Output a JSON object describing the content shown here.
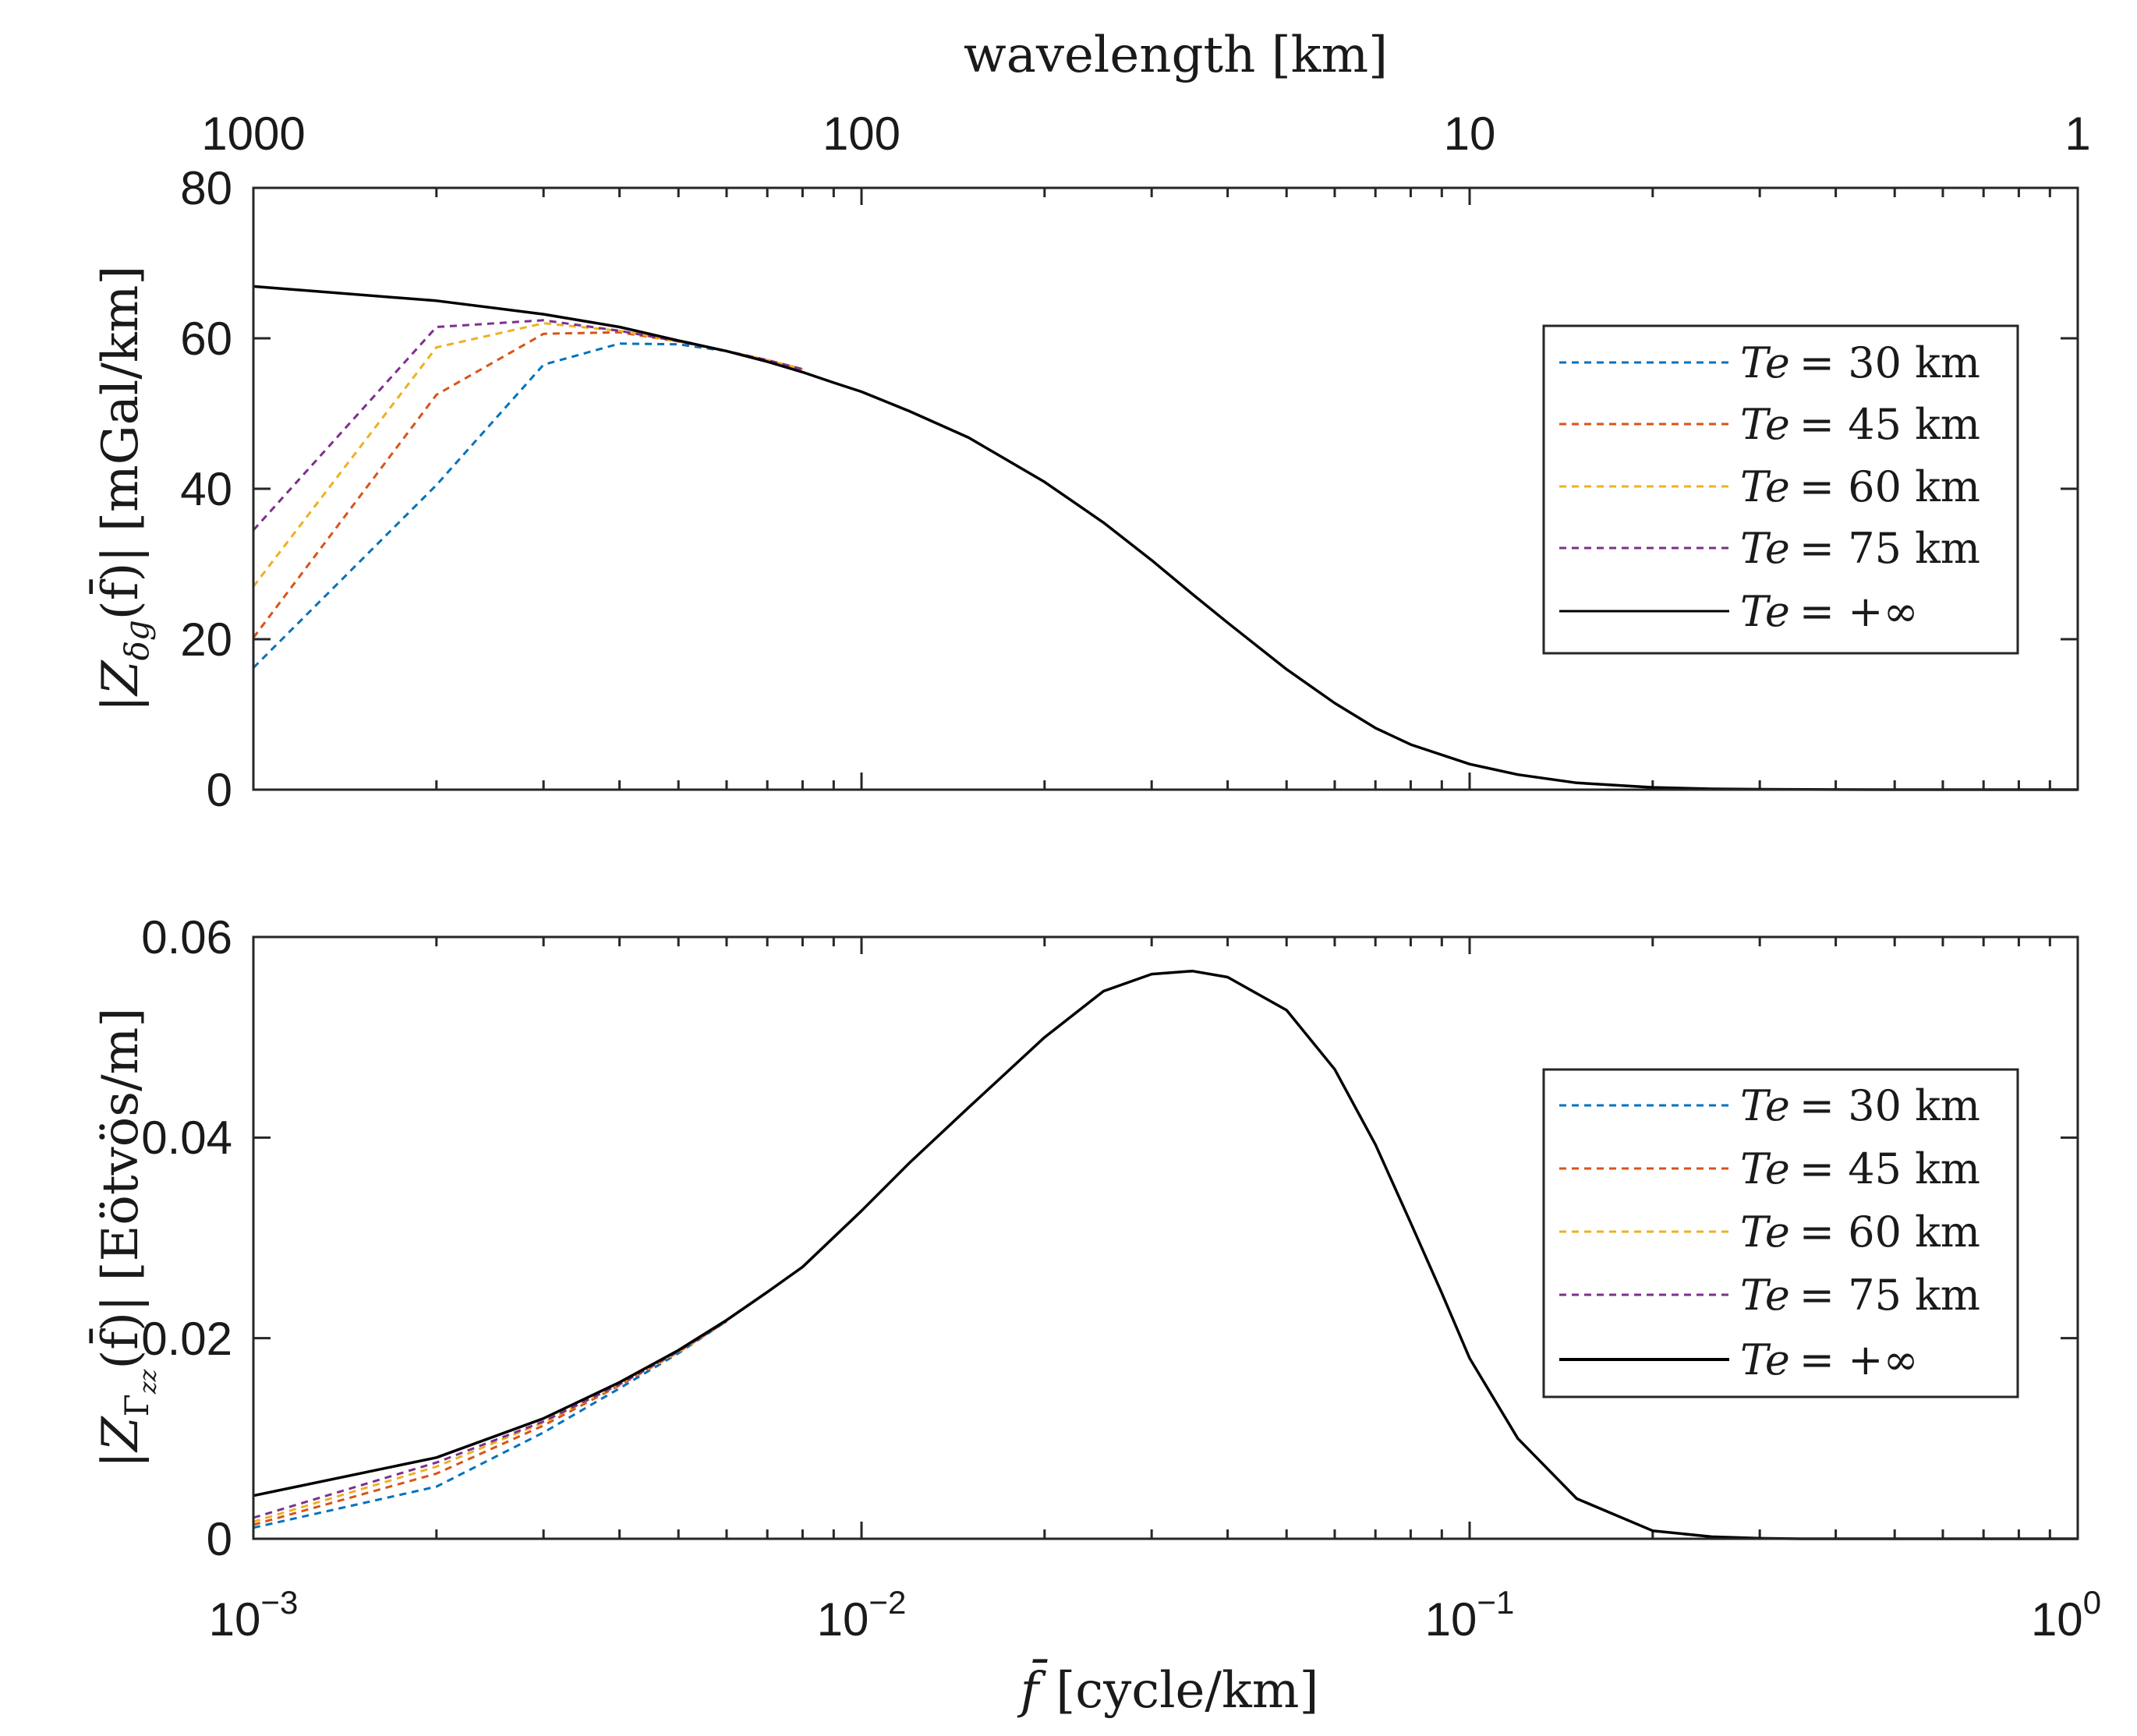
{
  "chart_data": [
    {
      "type": "line",
      "panel": "top",
      "xscale": "log",
      "xlim": [
        0.001,
        1
      ],
      "ylim": [
        0,
        80
      ],
      "yticks": [
        "0",
        "20",
        "40",
        "60",
        "80"
      ],
      "top_axis": {
        "label": "wavelength [km]",
        "ticks": [
          "1000",
          "100",
          "10",
          "1"
        ]
      },
      "ylabel": "|Z_δg(f̄)| [mGal/km]",
      "ylabel_parts": {
        "bar1": "|",
        "z": "Z",
        "sub": "δg",
        "arg": "(f̄)",
        "bar2": "|",
        "unit": "[mGal/km]"
      },
      "legend": {
        "position": "right"
      },
      "series": [
        {
          "name": "Te = 30 km",
          "label_var": "Te",
          "label_val": "= 30 km",
          "color": "#0072BD",
          "dash": true,
          "x": [
            0.001,
            0.002,
            0.003,
            0.004,
            0.005,
            0.006,
            0.007,
            0.008
          ],
          "y": [
            16.2,
            40.5,
            56.5,
            59.3,
            59.2,
            58.3,
            57.1,
            55.9
          ]
        },
        {
          "name": "Te = 45 km",
          "label_var": "Te",
          "label_val": "= 45 km",
          "color": "#D95319",
          "dash": true,
          "x": [
            0.001,
            0.002,
            0.003,
            0.004,
            0.005,
            0.006,
            0.007,
            0.008
          ],
          "y": [
            20.2,
            52.5,
            60.6,
            60.8,
            59.6,
            58.3,
            57.1,
            55.9
          ]
        },
        {
          "name": "Te = 60 km",
          "label_var": "Te",
          "label_val": "= 60 km",
          "color": "#EDB120",
          "dash": true,
          "x": [
            0.001,
            0.002,
            0.003,
            0.004,
            0.005,
            0.006,
            0.007,
            0.008
          ],
          "y": [
            27.0,
            58.8,
            62.0,
            61.0,
            59.6,
            58.3,
            57.1,
            55.9
          ]
        },
        {
          "name": "Te = 75 km",
          "label_var": "Te",
          "label_val": "= 75 km",
          "color": "#7E2F8E",
          "dash": true,
          "x": [
            0.001,
            0.002,
            0.003,
            0.004,
            0.005,
            0.006,
            0.007,
            0.008
          ],
          "y": [
            34.5,
            61.5,
            62.4,
            61.0,
            59.6,
            58.3,
            57.1,
            55.9
          ]
        },
        {
          "name": "Te = +∞",
          "label_var": "Te",
          "label_val": "= +∞",
          "color": "#000000",
          "dash": false,
          "x": [
            0.001,
            0.002,
            0.003,
            0.004,
            0.005,
            0.006,
            0.007,
            0.008,
            0.009,
            0.01,
            0.012,
            0.015,
            0.02,
            0.025,
            0.03,
            0.035,
            0.04,
            0.05,
            0.06,
            0.07,
            0.08,
            0.1,
            0.12,
            0.15,
            0.2,
            0.25,
            0.3,
            0.4,
            0.5,
            0.7,
            1.0
          ],
          "y": [
            66.9,
            65.0,
            63.2,
            61.5,
            59.7,
            58.3,
            56.9,
            55.5,
            54.1,
            52.9,
            50.3,
            46.8,
            40.9,
            35.5,
            30.5,
            26.0,
            22.2,
            16.0,
            11.5,
            8.2,
            6.0,
            3.4,
            2.0,
            0.9,
            0.3,
            0.1,
            0.05,
            0.01,
            0.0,
            0.0,
            0.0
          ]
        }
      ]
    },
    {
      "type": "line",
      "panel": "bottom",
      "xscale": "log",
      "xlim": [
        0.001,
        1
      ],
      "ylim": [
        0,
        0.06
      ],
      "yticks": [
        "0",
        "0.02",
        "0.04",
        "0.06"
      ],
      "xlabel": "f̄ [cycle/km]",
      "xlabel_parts": {
        "f": "f̄",
        "unit": "[cycle/km]"
      },
      "xtick_base": "10",
      "xtick_exps": [
        "−3",
        "−2",
        "−1",
        "0"
      ],
      "ylabel": "|Z_Γzz(f̄)| [Eötvös/m]",
      "ylabel_parts": {
        "bar1": "|",
        "z": "Z",
        "sub": "Γ",
        "subsub": "zz",
        "arg": "(f̄)",
        "bar2": "|",
        "unit": "[Eötvös/m]"
      },
      "legend": {
        "position": "right"
      },
      "series": [
        {
          "name": "Te = 30 km",
          "label_var": "Te",
          "label_val": "= 30 km",
          "color": "#0072BD",
          "dash": true,
          "x": [
            0.001,
            0.002,
            0.003,
            0.004,
            0.005,
            0.006
          ],
          "y": [
            0.0011,
            0.0052,
            0.0106,
            0.015,
            0.0185,
            0.0217
          ]
        },
        {
          "name": "Te = 45 km",
          "label_var": "Te",
          "label_val": "= 45 km",
          "color": "#D95319",
          "dash": true,
          "x": [
            0.001,
            0.002,
            0.003,
            0.004,
            0.005,
            0.006
          ],
          "y": [
            0.0014,
            0.0065,
            0.0113,
            0.0153,
            0.0186,
            0.0217
          ]
        },
        {
          "name": "Te = 60 km",
          "label_var": "Te",
          "label_val": "= 60 km",
          "color": "#EDB120",
          "dash": true,
          "x": [
            0.001,
            0.002,
            0.003,
            0.004,
            0.005,
            0.006
          ],
          "y": [
            0.0017,
            0.0072,
            0.0116,
            0.0154,
            0.0186,
            0.0217
          ]
        },
        {
          "name": "Te = 75 km",
          "label_var": "Te",
          "label_val": "= 75 km",
          "color": "#7E2F8E",
          "dash": true,
          "x": [
            0.001,
            0.002,
            0.003,
            0.004,
            0.005,
            0.006
          ],
          "y": [
            0.0021,
            0.0076,
            0.0117,
            0.0154,
            0.0187,
            0.0217
          ]
        },
        {
          "name": "Te = +∞",
          "label_var": "Te",
          "label_val": "= +∞",
          "color": "#000000",
          "dash": false,
          "x": [
            0.001,
            0.002,
            0.003,
            0.004,
            0.005,
            0.006,
            0.007,
            0.008,
            0.01,
            0.012,
            0.015,
            0.02,
            0.025,
            0.03,
            0.035,
            0.04,
            0.05,
            0.06,
            0.07,
            0.08,
            0.09,
            0.1,
            0.12,
            0.15,
            0.2,
            0.25,
            0.3,
            0.35,
            0.4,
            0.5,
            0.7,
            1.0
          ],
          "y": [
            0.0043,
            0.0081,
            0.012,
            0.0156,
            0.0188,
            0.0218,
            0.0246,
            0.0271,
            0.0327,
            0.0375,
            0.043,
            0.05,
            0.0546,
            0.0563,
            0.0566,
            0.056,
            0.0527,
            0.0468,
            0.0393,
            0.0315,
            0.0245,
            0.018,
            0.01,
            0.004,
            0.0008,
            0.0002,
            5e-05,
            0.0,
            0.0,
            0.0,
            0.0,
            0.0
          ]
        }
      ]
    }
  ]
}
